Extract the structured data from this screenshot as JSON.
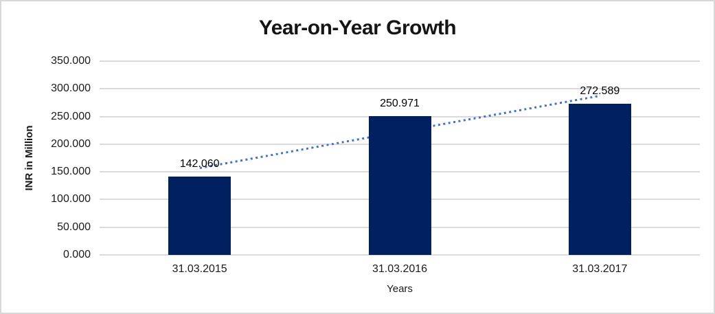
{
  "chart_data": {
    "type": "bar",
    "title": "Year-on-Year Growth",
    "xlabel": "Years",
    "ylabel": "INR in Million",
    "categories": [
      "31.03.2015",
      "31.03.2016",
      "31.03.2017"
    ],
    "values": [
      142.06,
      250.971,
      272.589
    ],
    "data_labels": [
      "142.060",
      "250.971",
      "272.589"
    ],
    "ylim": [
      0,
      350
    ],
    "y_tick_values": [
      0,
      50,
      100,
      150,
      200,
      250,
      300,
      350
    ],
    "y_tick_labels": [
      "0.000",
      "50.000",
      "100.000",
      "150.000",
      "200.000",
      "250.000",
      "300.000",
      "350.000"
    ],
    "grid": true,
    "legend": "none",
    "bar_color": "#002060",
    "gridline_color": "#dadada",
    "trendline": {
      "type": "linear",
      "style": "dotted",
      "color": "#4472C4"
    }
  }
}
